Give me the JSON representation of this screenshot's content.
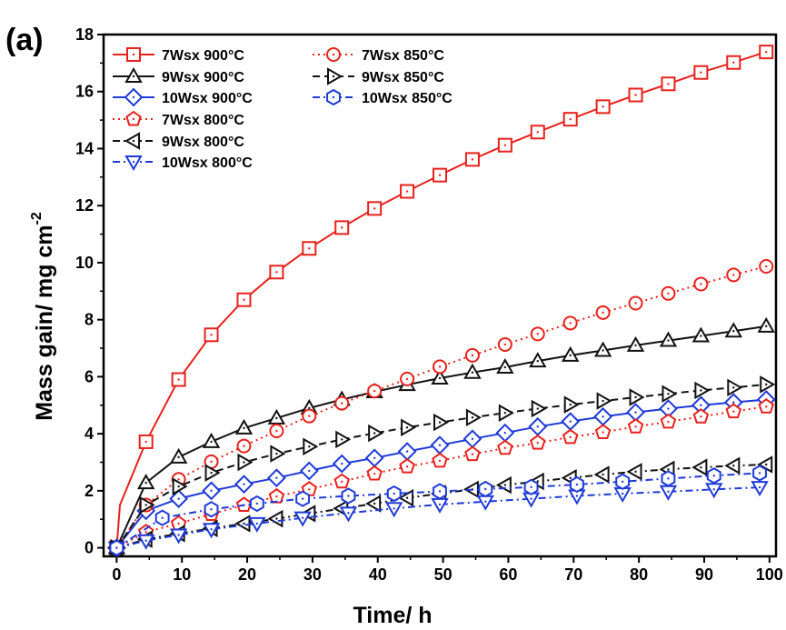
{
  "chart_data": {
    "type": "line",
    "panel_label": "(a)",
    "xlabel": "Time/ h",
    "ylabel": "Mass gain/ mg cm",
    "ylabel_sup": "-2",
    "xlim": [
      -2,
      101
    ],
    "ylim": [
      -0.3,
      18
    ],
    "xticks": [
      0,
      10,
      20,
      30,
      40,
      50,
      60,
      70,
      80,
      90,
      100
    ],
    "yticks": [
      0,
      2,
      4,
      6,
      8,
      10,
      12,
      14,
      16,
      18
    ],
    "grid": false,
    "legend_position": "top-left",
    "series": [
      {
        "name": "7Wsx 900°C",
        "color": "#e8211d",
        "marker": "square",
        "dash": "solid",
        "x": [
          0,
          0.5,
          4.5,
          9.5,
          14.5,
          19.5,
          24.5,
          29.5,
          34.5,
          39.5,
          44.5,
          49.5,
          54.5,
          59.5,
          64.5,
          69.5,
          74.5,
          79.5,
          84.5,
          89.5,
          94.5,
          99.5
        ],
        "y": [
          0,
          1.5,
          3.72,
          5.9,
          7.47,
          8.7,
          9.67,
          10.5,
          11.23,
          11.9,
          12.5,
          13.07,
          13.62,
          14.12,
          14.58,
          15.03,
          15.47,
          15.88,
          16.27,
          16.67,
          17.02,
          17.39
        ]
      },
      {
        "name": "9Wsx 900°C",
        "color": "#111111",
        "marker": "triangle-up",
        "dash": "solid",
        "x": [
          0,
          4.5,
          9.5,
          14.5,
          19.5,
          24.5,
          29.5,
          34.5,
          39.5,
          44.5,
          49.5,
          54.5,
          59.5,
          64.5,
          69.5,
          74.5,
          79.5,
          84.5,
          89.5,
          94.5,
          99.5
        ],
        "y": [
          0,
          2.28,
          3.18,
          3.72,
          4.2,
          4.55,
          4.9,
          5.2,
          5.47,
          5.72,
          5.95,
          6.15,
          6.33,
          6.55,
          6.75,
          6.92,
          7.1,
          7.27,
          7.43,
          7.6,
          7.77
        ]
      },
      {
        "name": "10Wsx 900°C",
        "color": "#1f3ad8",
        "marker": "diamond",
        "dash": "solid",
        "x": [
          0,
          4.5,
          9.5,
          14.5,
          19.5,
          24.5,
          29.5,
          34.5,
          39.5,
          44.5,
          49.5,
          54.5,
          59.5,
          64.5,
          69.5,
          74.5,
          79.5,
          84.5,
          89.5,
          94.5,
          99.5
        ],
        "y": [
          0,
          1.3,
          1.72,
          2.0,
          2.23,
          2.45,
          2.7,
          2.95,
          3.15,
          3.38,
          3.6,
          3.82,
          4.03,
          4.25,
          4.43,
          4.6,
          4.75,
          4.88,
          5.0,
          5.1,
          5.2
        ]
      },
      {
        "name": "7Wsx 800°C",
        "color": "#e8211d",
        "marker": "pentagon",
        "dash": "dot",
        "x": [
          0,
          4.5,
          9.5,
          14.5,
          19.5,
          24.5,
          29.5,
          34.5,
          39.5,
          44.5,
          49.5,
          54.5,
          59.5,
          64.5,
          69.5,
          74.5,
          79.5,
          84.5,
          89.5,
          94.5,
          99.5
        ],
        "y": [
          0,
          0.55,
          0.85,
          1.18,
          1.5,
          1.8,
          2.05,
          2.32,
          2.6,
          2.85,
          3.05,
          3.28,
          3.5,
          3.68,
          3.88,
          4.05,
          4.25,
          4.42,
          4.6,
          4.78,
          4.95
        ]
      },
      {
        "name": "9Wsx 800°C",
        "color": "#111111",
        "marker": "triangle-left",
        "dash": "dash-dot",
        "x": [
          0,
          4.5,
          9.5,
          14.5,
          19.5,
          24.5,
          29.5,
          34.5,
          39.5,
          44.5,
          49.5,
          54.5,
          59.5,
          64.5,
          69.5,
          74.5,
          79.5,
          84.5,
          89.5,
          94.5,
          99.5
        ],
        "y": [
          0,
          0.3,
          0.5,
          0.68,
          0.85,
          1.02,
          1.2,
          1.38,
          1.55,
          1.75,
          1.9,
          2.05,
          2.2,
          2.33,
          2.45,
          2.57,
          2.67,
          2.75,
          2.82,
          2.88,
          2.92
        ]
      },
      {
        "name": "10Wsx 800°C",
        "color": "#1f3ad8",
        "marker": "triangle-down",
        "dash": "dash-dot",
        "x": [
          0,
          4.5,
          9.5,
          14.5,
          21.5,
          28.5,
          35.5,
          42.5,
          49.5,
          56.5,
          63.5,
          70.5,
          77.5,
          84.5,
          91.5,
          98.5
        ],
        "y": [
          0,
          0.25,
          0.45,
          0.65,
          0.85,
          1.05,
          1.22,
          1.38,
          1.52,
          1.62,
          1.72,
          1.82,
          1.9,
          1.97,
          2.05,
          2.12
        ]
      },
      {
        "name": "7Wsx 850°C",
        "color": "#e8211d",
        "marker": "circle",
        "dash": "dot",
        "x": [
          0,
          4.5,
          9.5,
          14.5,
          19.5,
          24.5,
          29.5,
          34.5,
          39.5,
          44.5,
          49.5,
          54.5,
          59.5,
          64.5,
          69.5,
          74.5,
          79.5,
          84.5,
          89.5,
          94.5,
          99.5
        ],
        "y": [
          0,
          1.5,
          2.4,
          3.02,
          3.57,
          4.1,
          4.62,
          5.07,
          5.5,
          5.92,
          6.35,
          6.75,
          7.13,
          7.5,
          7.88,
          8.25,
          8.58,
          8.92,
          9.25,
          9.57,
          9.87
        ]
      },
      {
        "name": "9Wsx 850°C",
        "color": "#111111",
        "marker": "triangle-right",
        "dash": "dash",
        "x": [
          0,
          4.5,
          9.5,
          14.5,
          19.5,
          24.5,
          29.5,
          34.5,
          39.5,
          44.5,
          49.5,
          54.5,
          59.5,
          64.5,
          69.5,
          74.5,
          79.5,
          84.5,
          89.5,
          94.5,
          99.5
        ],
        "y": [
          0,
          1.5,
          2.15,
          2.63,
          3.0,
          3.3,
          3.55,
          3.8,
          4.02,
          4.22,
          4.4,
          4.57,
          4.73,
          4.88,
          5.02,
          5.15,
          5.28,
          5.4,
          5.52,
          5.62,
          5.73
        ]
      },
      {
        "name": "10Wsx 850°C",
        "color": "#1f3ad8",
        "marker": "hexagon",
        "dash": "dash-dot",
        "x": [
          0,
          7.0,
          14.5,
          21.5,
          28.5,
          35.5,
          42.5,
          49.5,
          56.5,
          63.5,
          70.5,
          77.5,
          84.5,
          91.5,
          98.5
        ],
        "y": [
          0,
          1.05,
          1.35,
          1.55,
          1.72,
          1.82,
          1.9,
          1.98,
          2.06,
          2.13,
          2.22,
          2.32,
          2.43,
          2.53,
          2.62
        ]
      }
    ]
  }
}
